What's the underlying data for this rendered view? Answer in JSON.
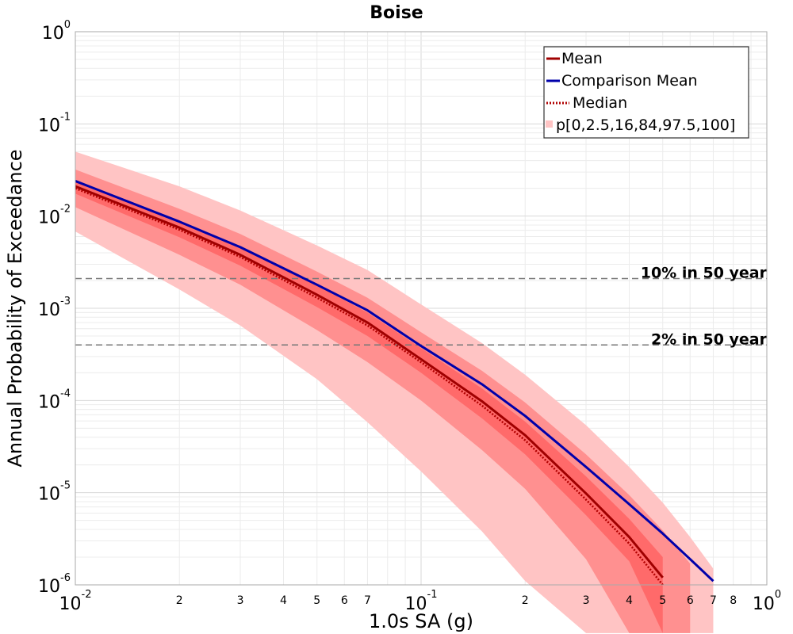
{
  "chart_data": {
    "type": "line",
    "title": "Boise",
    "xlabel": "1.0s SA (g)",
    "ylabel": "Annual Probability of Exceedance",
    "x_scale": "log",
    "y_scale": "log",
    "xlim": [
      0.01,
      1
    ],
    "ylim": [
      1e-06,
      1
    ],
    "grid": true,
    "legend_position": "top-right",
    "x_ticks_major": [
      {
        "base": "10",
        "exp": "-2",
        "value": 0.01
      },
      {
        "base": "10",
        "exp": "-1",
        "value": 0.1
      },
      {
        "base": "10",
        "exp": "0",
        "value": 1
      }
    ],
    "x_ticks_minor": [
      {
        "label": "2",
        "value": 0.02
      },
      {
        "label": "3",
        "value": 0.03
      },
      {
        "label": "4",
        "value": 0.04
      },
      {
        "label": "5",
        "value": 0.05
      },
      {
        "label": "6",
        "value": 0.06
      },
      {
        "label": "7",
        "value": 0.07
      },
      {
        "label": "2",
        "value": 0.2
      },
      {
        "label": "3",
        "value": 0.3
      },
      {
        "label": "4",
        "value": 0.4
      },
      {
        "label": "5",
        "value": 0.5
      },
      {
        "label": "6",
        "value": 0.6
      },
      {
        "label": "7",
        "value": 0.7
      },
      {
        "label": "8",
        "value": 0.8
      }
    ],
    "y_ticks": [
      {
        "base": "10",
        "exp": "0",
        "value": 1
      },
      {
        "base": "10",
        "exp": "-1",
        "value": 0.1
      },
      {
        "base": "10",
        "exp": "-2",
        "value": 0.01
      },
      {
        "base": "10",
        "exp": "-3",
        "value": 0.001
      },
      {
        "base": "10",
        "exp": "-4",
        "value": 0.0001
      },
      {
        "base": "10",
        "exp": "-5",
        "value": 1e-05
      },
      {
        "base": "10",
        "exp": "-6",
        "value": 1e-06
      }
    ],
    "x": [
      0.01,
      0.02,
      0.03,
      0.05,
      0.07,
      0.1,
      0.15,
      0.2,
      0.3,
      0.4,
      0.5,
      0.6,
      0.7,
      0.8
    ],
    "series": [
      {
        "name": "Mean",
        "color": "#a00000",
        "style": "solid",
        "values": [
          0.021,
          0.0075,
          0.0038,
          0.0014,
          0.0007,
          0.00028,
          9.8e-05,
          4.2e-05,
          9.8e-06,
          3.3e-06,
          1.2e-06,
          null,
          null,
          null
        ]
      },
      {
        "name": "Comparison Mean",
        "color": "#0000aa",
        "style": "solid",
        "values": [
          0.024,
          0.0087,
          0.0046,
          0.0018,
          0.00095,
          0.00039,
          0.00015,
          6.8e-05,
          1.9e-05,
          7.5e-06,
          3.6e-06,
          1.9e-06,
          1.1e-06,
          null
        ]
      },
      {
        "name": "Median",
        "color": "#b00000",
        "style": "dotted",
        "values": [
          0.02,
          0.0071,
          0.0036,
          0.0013,
          0.00065,
          0.00026,
          8.8e-05,
          3.7e-05,
          8.4e-06,
          2.8e-06,
          1e-06,
          null,
          null,
          null
        ]
      }
    ],
    "bands": {
      "name": "p[0,2.5,16,84,97.5,100]",
      "layers": [
        {
          "color": "#ffc4c4",
          "lower": [
            0.0068,
            0.0016,
            0.00065,
            0.00017,
            5.8e-05,
            1.7e-05,
            3.8e-06,
            1.1e-06,
            null,
            null,
            null,
            null,
            null,
            null
          ],
          "upper": [
            0.05,
            0.021,
            0.0115,
            0.0048,
            0.0026,
            0.0011,
            0.00042,
            0.00019,
            5.4e-05,
            1.9e-05,
            7.8e-06,
            3.3e-06,
            1.5e-06,
            null
          ]
        },
        {
          "color": "#ff9090",
          "lower": [
            0.0125,
            0.0038,
            0.0018,
            0.00058,
            0.00026,
            0.0001,
            2.9e-05,
            1.1e-05,
            1.9e-06,
            null,
            null,
            null,
            null,
            null
          ],
          "upper": [
            0.032,
            0.012,
            0.0064,
            0.0025,
            0.0013,
            0.00055,
            0.00021,
            9.5e-05,
            2.6e-05,
            9.4e-06,
            3.9e-06,
            1.7e-06,
            null,
            null
          ]
        },
        {
          "color": "#ff6a6a",
          "lower": [
            0.0175,
            0.0059,
            0.0029,
            0.00103,
            0.0005,
            0.0002,
            6.4e-05,
            2.6e-05,
            5.7e-06,
            1.8e-06,
            null,
            null,
            null,
            null
          ],
          "upper": [
            0.0245,
            0.0089,
            0.0046,
            0.00175,
            0.0009,
            0.00037,
            0.000135,
            5.9e-05,
            1.5e-05,
            5.2e-06,
            2e-06,
            null,
            null,
            null
          ]
        }
      ]
    },
    "hazard_lines": [
      {
        "label": "10% in 50 year",
        "value": 0.0021
      },
      {
        "label": "2% in 50 year",
        "value": 0.0004
      }
    ]
  }
}
